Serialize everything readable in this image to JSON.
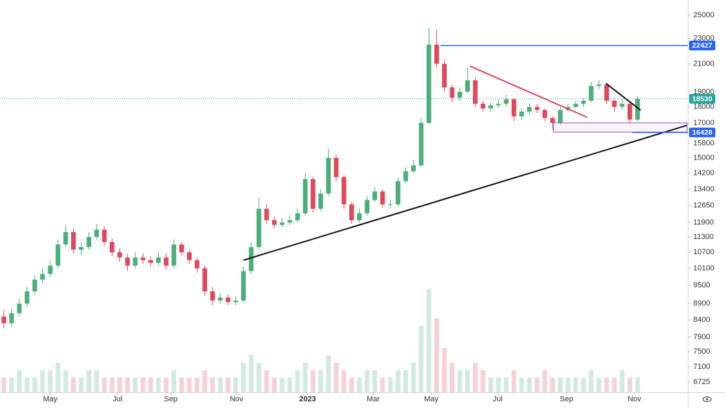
{
  "chart_data": {
    "type": "candlestick",
    "log_scale": true,
    "up_color": "#4caf7a",
    "down_color": "#e0485c",
    "x": [
      0,
      1,
      2,
      3,
      4,
      5,
      6,
      7,
      8,
      9,
      10,
      11,
      12,
      13,
      14,
      15,
      16,
      17,
      18,
      19,
      20,
      21,
      22,
      23,
      24,
      25,
      26,
      27,
      28,
      29,
      30,
      31,
      32,
      33,
      34,
      35,
      36,
      37,
      38,
      39,
      40,
      41,
      42,
      43,
      44,
      45,
      46,
      47,
      48,
      49,
      50,
      51,
      52,
      53,
      54,
      55,
      56,
      57,
      58,
      59,
      60,
      61,
      62,
      63,
      64,
      65,
      66,
      67,
      68,
      69,
      70,
      71,
      72,
      73,
      74,
      75,
      76,
      77,
      78,
      79,
      80,
      81,
      82
    ],
    "open": [
      8500,
      8300,
      8600,
      8900,
      9300,
      9700,
      9900,
      10200,
      11000,
      11500,
      10800,
      10900,
      11300,
      11600,
      11100,
      10700,
      10500,
      10200,
      10500,
      10400,
      10300,
      10500,
      10200,
      11000,
      10700,
      10400,
      10100,
      9300,
      9000,
      9100,
      8950,
      9000,
      10000,
      10900,
      12500,
      12000,
      11800,
      11900,
      12000,
      12300,
      13900,
      12500,
      13200,
      15000,
      14000,
      12700,
      12000,
      12300,
      12900,
      13300,
      12700,
      12700,
      13800,
      14300,
      14600,
      17000,
      22500,
      21000,
      19300,
      18600,
      19000,
      19800,
      18200,
      17900,
      18100,
      18200,
      18500,
      17400,
      17700,
      18000,
      17800,
      17300,
      17000,
      17800,
      18000,
      18200,
      18400,
      19400,
      19500,
      18400,
      18000,
      18200,
      17200
    ],
    "high": [
      8700,
      8750,
      9050,
      9450,
      9850,
      10100,
      10400,
      11200,
      11800,
      11650,
      11100,
      11500,
      11850,
      11750,
      11250,
      10850,
      10650,
      10700,
      10650,
      10550,
      10700,
      10650,
      11200,
      11100,
      10800,
      10500,
      10200,
      9450,
      9250,
      9200,
      9150,
      10150,
      11100,
      13000,
      12700,
      12150,
      12100,
      12200,
      12500,
      14200,
      14000,
      13400,
      15500,
      15200,
      14100,
      12800,
      12500,
      13100,
      13500,
      13400,
      12900,
      14000,
      14500,
      14900,
      17300,
      23900,
      23700,
      21300,
      19500,
      19300,
      20700,
      20000,
      18400,
      18300,
      18500,
      18800,
      18600,
      17900,
      18200,
      18200,
      17900,
      17400,
      18000,
      18200,
      18400,
      18600,
      19700,
      19800,
      19600,
      18500,
      18500,
      18300,
      18700
    ],
    "low": [
      8150,
      8200,
      8500,
      8800,
      9200,
      9600,
      9800,
      10100,
      10900,
      10650,
      10600,
      10800,
      11200,
      10950,
      10550,
      10350,
      10000,
      10100,
      10250,
      10150,
      10200,
      10050,
      10100,
      10550,
      10250,
      9950,
      9150,
      8850,
      8900,
      8850,
      8850,
      8950,
      9900,
      10800,
      11850,
      11650,
      11700,
      11800,
      11900,
      12200,
      12350,
      12400,
      13100,
      13800,
      12500,
      11850,
      11900,
      12200,
      12800,
      12550,
      12500,
      12600,
      13700,
      14200,
      14500,
      16900,
      20700,
      19000,
      18300,
      18400,
      18900,
      18000,
      17700,
      17700,
      17900,
      18000,
      17100,
      17200,
      17500,
      17600,
      17100,
      16600,
      16900,
      17700,
      17900,
      18000,
      18300,
      19200,
      18200,
      17700,
      17800,
      17000,
      17100
    ],
    "close": [
      8300,
      8600,
      8900,
      9300,
      9700,
      9900,
      10200,
      11000,
      11500,
      10800,
      10900,
      11300,
      11600,
      11100,
      10700,
      10500,
      10200,
      10500,
      10400,
      10300,
      10500,
      10200,
      11000,
      10700,
      10400,
      10100,
      9300,
      9000,
      9100,
      8950,
      9000,
      10000,
      10900,
      12500,
      12000,
      11800,
      11900,
      12000,
      12300,
      13900,
      12500,
      13200,
      15000,
      14000,
      12700,
      12000,
      12300,
      12900,
      13300,
      12700,
      12700,
      13800,
      14300,
      14600,
      17000,
      22500,
      21000,
      19300,
      18600,
      19000,
      19800,
      18200,
      17900,
      18100,
      18200,
      18500,
      17400,
      17700,
      18000,
      17800,
      17300,
      17000,
      17800,
      18000,
      18200,
      18400,
      19400,
      19500,
      18400,
      18000,
      18200,
      17200,
      18530
    ],
    "volume": [
      2,
      2,
      3,
      2,
      2,
      3,
      3,
      4,
      3,
      2,
      2,
      3,
      3,
      2,
      2,
      2,
      2,
      2,
      2,
      2,
      2,
      2,
      3,
      2,
      2,
      2,
      3,
      2,
      2,
      2,
      2,
      4,
      5,
      4,
      3,
      2,
      2,
      2,
      3,
      4,
      3,
      3,
      5,
      4,
      3,
      2,
      2,
      3,
      3,
      2,
      2,
      3,
      3,
      4,
      9,
      14,
      10,
      6,
      4,
      3,
      3,
      4,
      3,
      2,
      2,
      2,
      3,
      2,
      2,
      2,
      3,
      2,
      2,
      2,
      2,
      2,
      3,
      2,
      2,
      2,
      3,
      2,
      2
    ],
    "xlim": [
      -0.5,
      88.4
    ],
    "xticks": [
      {
        "value": 6,
        "label": "May"
      },
      {
        "value": 14.7,
        "label": "Jul"
      },
      {
        "value": 21.6,
        "label": "Sep"
      },
      {
        "value": 30.1,
        "label": "Nov"
      },
      {
        "value": 39.3,
        "label": "2023"
      },
      {
        "value": 47.8,
        "label": "Mar"
      },
      {
        "value": 55.3,
        "label": "May"
      },
      {
        "value": 63.9,
        "label": "Jul"
      },
      {
        "value": 72.8,
        "label": "Sep"
      },
      {
        "value": 81.6,
        "label": "Nov"
      }
    ],
    "ylim": [
      6480,
      26390
    ],
    "yticks": [
      25000,
      23000,
      21000,
      19000,
      18000,
      17000,
      15800,
      15000,
      14200,
      13400,
      12650,
      11900,
      11300,
      10700,
      10100,
      9500,
      8900,
      8400,
      7900,
      7500,
      7100,
      6725
    ],
    "lines": [
      {
        "color": "#111111",
        "points": [
          {
            "x": 31,
            "y": 10400
          },
          {
            "x": 88.4,
            "y": 16850
          }
        ]
      },
      {
        "color": "#e0485c",
        "points": [
          {
            "x": 60.3,
            "y": 20830
          },
          {
            "x": 75.5,
            "y": 17340
          }
        ]
      },
      {
        "color": "#111111",
        "points": [
          {
            "x": 77.9,
            "y": 19580
          },
          {
            "x": 82.4,
            "y": 17790
          }
        ]
      }
    ],
    "rectangle": {
      "color": "#9c4fc0",
      "x1": 71.1,
      "x2": 88.4,
      "y1": 16450,
      "y2": 17000
    },
    "price_lines": [
      {
        "value": 22427,
        "color": "#2962ff",
        "from": 56.5,
        "dotted": false
      },
      {
        "value": 18530,
        "color": "#26a69a",
        "from": -0.5,
        "dotted": true
      },
      {
        "value": 16428,
        "color": "#2962ff",
        "from": 81.3,
        "dotted": false
      }
    ]
  }
}
